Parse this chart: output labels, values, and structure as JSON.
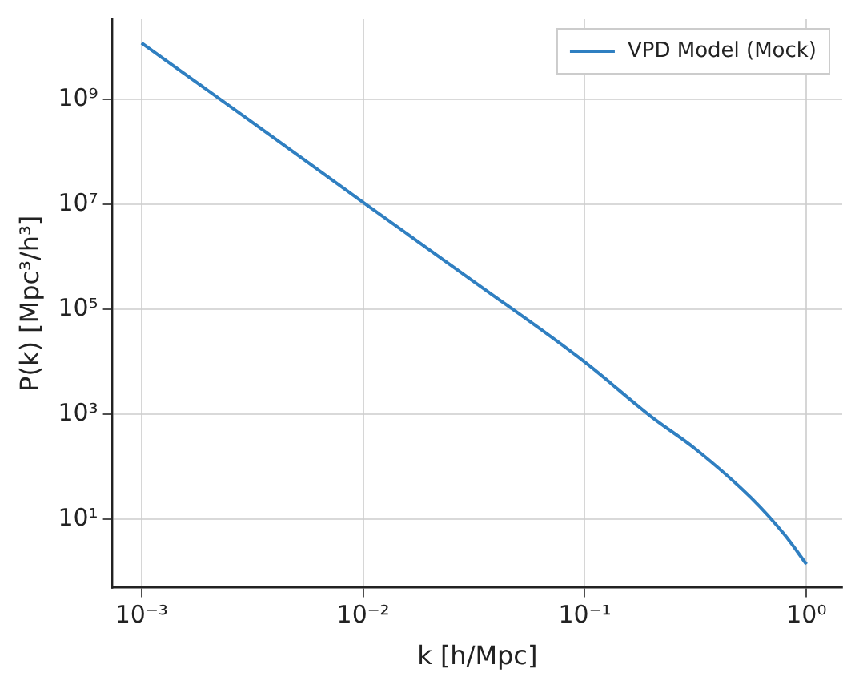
{
  "chart_data": {
    "type": "line",
    "xlabel": "k [h/Mpc]",
    "ylabel": "P(k) [Mpc³/h³]",
    "log": "xy",
    "grid": true,
    "legend": "top right",
    "marker": "none",
    "line_style": "solid",
    "xlim": [
      0.00074,
      1.45
    ],
    "ylim": [
      0.5,
      34000000000.0
    ],
    "xticks": [
      {
        "value": 0.001,
        "label": "10⁻³"
      },
      {
        "value": 0.01,
        "label": "10⁻²"
      },
      {
        "value": 0.1,
        "label": "10⁻¹"
      },
      {
        "value": 1,
        "label": "10⁰"
      }
    ],
    "yticks": [
      {
        "value": 10,
        "label": "10¹"
      },
      {
        "value": 1000,
        "label": "10³"
      },
      {
        "value": 100000,
        "label": "10⁵"
      },
      {
        "value": 10000000,
        "label": "10⁷"
      },
      {
        "value": 1000000000,
        "label": "10⁹"
      }
    ],
    "x": [
      0.001,
      0.00316,
      0.01,
      0.0316,
      0.1,
      0.2,
      0.316,
      0.562,
      0.8,
      1
    ],
    "series": [
      {
        "name": "VPD Model (Mock)",
        "color": "#2f7fc1",
        "values": [
          12000000000.0,
          370000000.0,
          11000000.0,
          340000.0,
          10000.0,
          900,
          220,
          26,
          5,
          1.4
        ]
      }
    ]
  }
}
